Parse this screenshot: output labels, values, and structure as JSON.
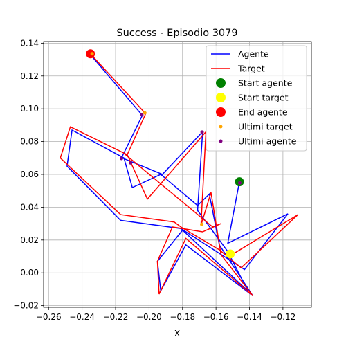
{
  "chart_data": {
    "type": "line",
    "title": "Success - Episodio 3079",
    "xlabel": "X",
    "ylabel": "",
    "xlim": [
      -0.263,
      -0.103
    ],
    "ylim": [
      -0.021,
      0.141
    ],
    "xticks": [
      -0.26,
      -0.24,
      -0.22,
      -0.2,
      -0.18,
      -0.16,
      -0.14,
      -0.12
    ],
    "xtick_labels": [
      "−0.26",
      "−0.24",
      "−0.22",
      "−0.20",
      "−0.18",
      "−0.16",
      "−0.14",
      "−0.12"
    ],
    "yticks": [
      -0.02,
      0.0,
      0.02,
      0.04,
      0.06,
      0.08,
      0.1,
      0.12,
      0.14
    ],
    "ytick_labels": [
      "−0.02",
      "0.00",
      "0.02",
      "0.04",
      "0.06",
      "0.08",
      "0.10",
      "0.12",
      "0.14"
    ],
    "grid": true,
    "legend_position": "top-right",
    "series": [
      {
        "name": "Agente",
        "color": "#0000ff",
        "points": [
          [
            -0.146,
            0.0555
          ],
          [
            -0.153,
            0.018
          ],
          [
            -0.117,
            0.036
          ],
          [
            -0.143,
            0.002
          ],
          [
            -0.181,
            0.027
          ],
          [
            -0.217,
            0.032
          ],
          [
            -0.249,
            0.065
          ],
          [
            -0.246,
            0.087
          ],
          [
            -0.215,
            0.07
          ],
          [
            -0.21,
            0.052
          ],
          [
            -0.193,
            0.06
          ],
          [
            -0.171,
            0.041
          ],
          [
            -0.164,
            0.048
          ],
          [
            -0.158,
            0.017
          ],
          [
            -0.138,
            -0.014
          ],
          [
            -0.178,
            0.017
          ],
          [
            -0.193,
            -0.011
          ],
          [
            -0.195,
            0.007
          ],
          [
            -0.18,
            0.026
          ],
          [
            -0.141,
            -0.011
          ],
          [
            -0.153,
            0.013
          ],
          [
            -0.171,
            0.038
          ],
          [
            -0.168,
            0.086
          ],
          [
            -0.192,
            0.06
          ],
          [
            -0.216,
            0.07
          ],
          [
            -0.216,
            0.071
          ],
          [
            -0.204,
            0.096
          ],
          [
            -0.235,
            0.133
          ]
        ]
      },
      {
        "name": "Target",
        "color": "#ff0000",
        "points": [
          [
            -0.149,
            0.012
          ],
          [
            -0.111,
            0.0355
          ],
          [
            -0.145,
            0.003
          ],
          [
            -0.158,
            0.014
          ],
          [
            -0.181,
            0.028
          ],
          [
            -0.185,
            0.031
          ],
          [
            -0.217,
            0.0355
          ],
          [
            -0.253,
            0.07
          ],
          [
            -0.247,
            0.089
          ],
          [
            -0.213,
            0.072
          ],
          [
            -0.201,
            0.045
          ],
          [
            -0.166,
            0.086
          ],
          [
            -0.169,
            0.029
          ],
          [
            -0.163,
            0.049
          ],
          [
            -0.157,
            0.011
          ],
          [
            -0.138,
            -0.014
          ],
          [
            -0.178,
            0.021
          ],
          [
            -0.194,
            -0.013
          ],
          [
            -0.195,
            0.007
          ],
          [
            -0.186,
            0.028
          ],
          [
            -0.168,
            0.025
          ],
          [
            -0.157,
            0.03
          ],
          [
            -0.162,
            0.028
          ],
          [
            -0.214,
            0.072
          ],
          [
            -0.213,
            0.072
          ],
          [
            -0.202,
            0.097
          ],
          [
            -0.235,
            0.1335
          ]
        ]
      }
    ],
    "markers": {
      "start_agente": {
        "name": "Start agente",
        "color": "#008000",
        "x": -0.146,
        "y": 0.0555
      },
      "start_target": {
        "name": "Start target",
        "color": "#ffff00",
        "x": -0.1515,
        "y": 0.0115
      },
      "end_agente": {
        "name": "End agente",
        "color": "#ff0000",
        "x": -0.235,
        "y": 0.1335
      },
      "ultimi_target": {
        "name": "Ultimi target",
        "color": "#ffa500",
        "points": [
          [
            -0.2025,
            0.0975
          ],
          [
            -0.234,
            0.1335
          ],
          [
            -0.1685,
            0.0295
          ]
        ]
      },
      "ultimi_agente": {
        "name": "Ultimi agente",
        "color": "#800080",
        "points": [
          [
            -0.2043,
            0.0963
          ],
          [
            -0.2165,
            0.0697
          ],
          [
            -0.211,
            0.067
          ],
          [
            -0.1683,
            0.0858
          ],
          [
            -0.1458,
            0.0548
          ]
        ]
      }
    },
    "legend": [
      {
        "label": "Agente",
        "kind": "line",
        "color": "#0000ff"
      },
      {
        "label": "Target",
        "kind": "line",
        "color": "#ff0000"
      },
      {
        "label": "Start agente",
        "kind": "big-dot",
        "color": "#008000"
      },
      {
        "label": "Start target",
        "kind": "big-dot",
        "color": "#ffff00"
      },
      {
        "label": "End agente",
        "kind": "big-dot",
        "color": "#ff0000"
      },
      {
        "label": "Ultimi target",
        "kind": "small-dot",
        "color": "#ffa500"
      },
      {
        "label": "Ultimi agente",
        "kind": "small-dot",
        "color": "#800080"
      }
    ]
  }
}
